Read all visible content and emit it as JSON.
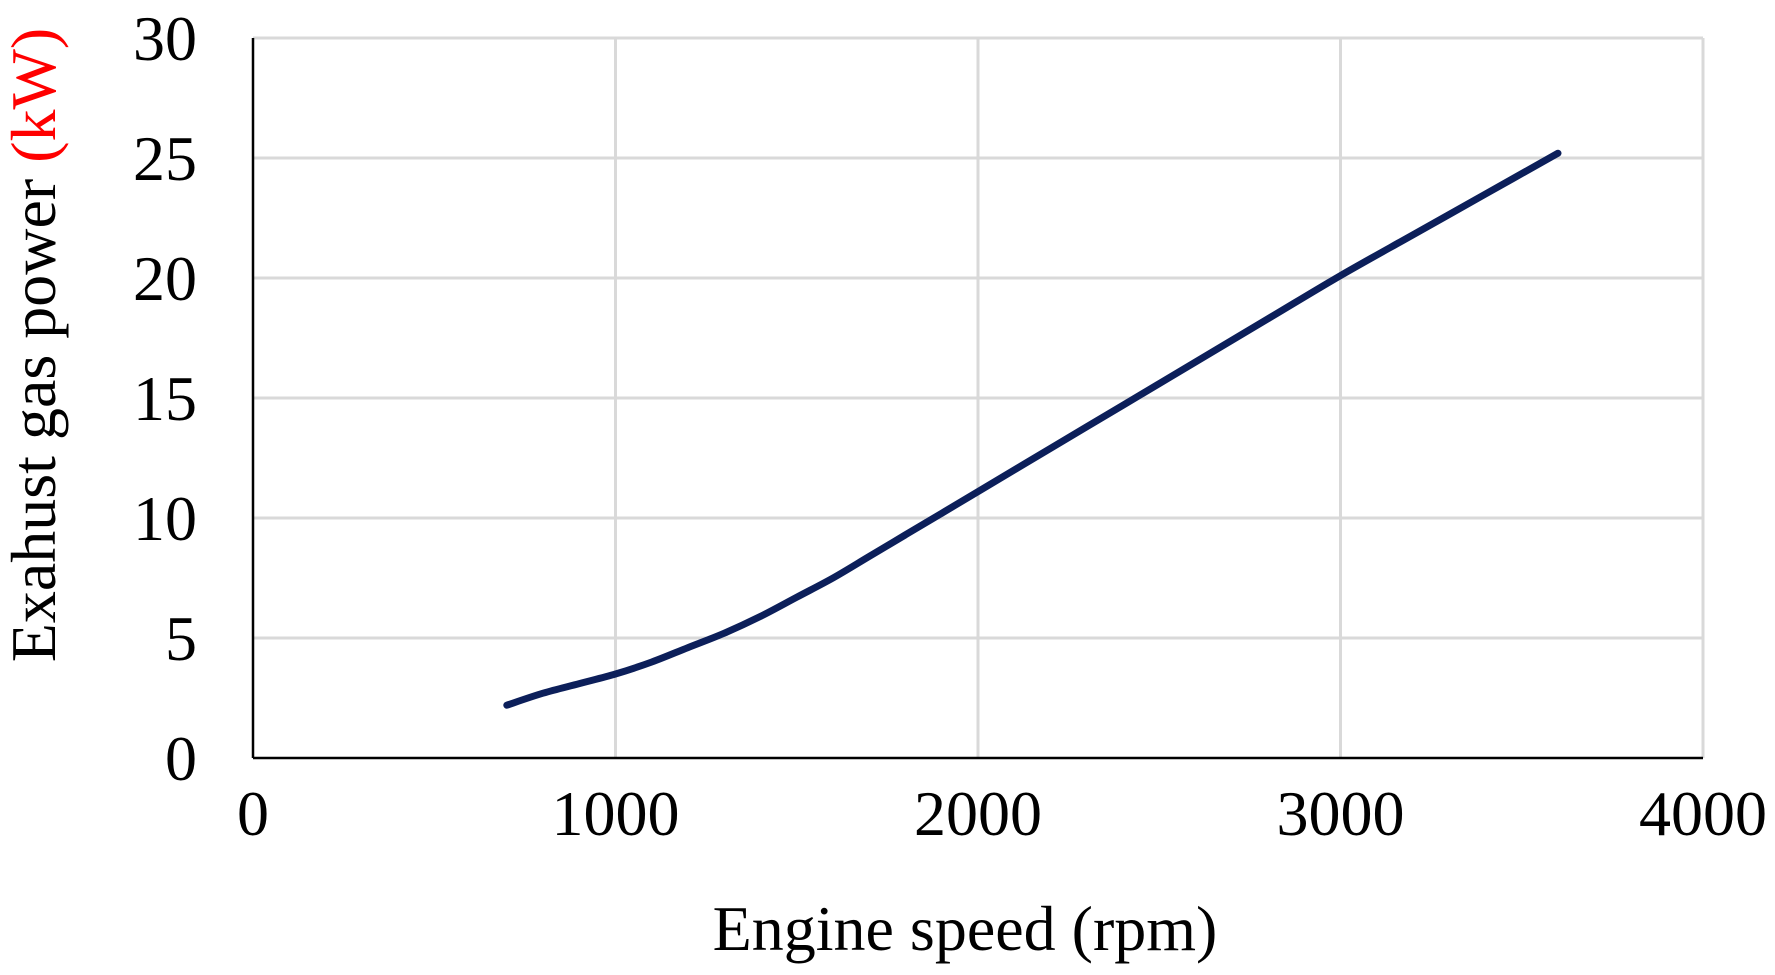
{
  "chart_data": {
    "type": "line",
    "xlabel": "Engine speed (rpm)",
    "ylabel": "Exahust gas power",
    "ylabel_unit": "(kW)",
    "xlim": [
      0,
      4000
    ],
    "ylim": [
      0,
      30
    ],
    "xticks": [
      0,
      1000,
      2000,
      3000,
      4000
    ],
    "yticks": [
      0,
      5,
      10,
      15,
      20,
      25,
      30
    ],
    "grid": true,
    "colors": {
      "line": "#0c1f5a",
      "unit_highlight": "#ff0000",
      "grid": "#d9d9d9"
    },
    "series": [
      {
        "x": [
          700,
          800,
          900,
          1000,
          1100,
          1200,
          1300,
          1400,
          1500,
          1600,
          1700,
          1800,
          1900,
          2000,
          2200,
          2400,
          2600,
          2800,
          3000,
          3200,
          3400,
          3600
        ],
        "values": [
          2.2,
          2.7,
          3.1,
          3.5,
          4.0,
          4.6,
          5.2,
          5.9,
          6.7,
          7.5,
          8.4,
          9.3,
          10.2,
          11.1,
          12.9,
          14.7,
          16.5,
          18.3,
          20.1,
          21.8,
          23.5,
          25.2
        ]
      }
    ]
  }
}
